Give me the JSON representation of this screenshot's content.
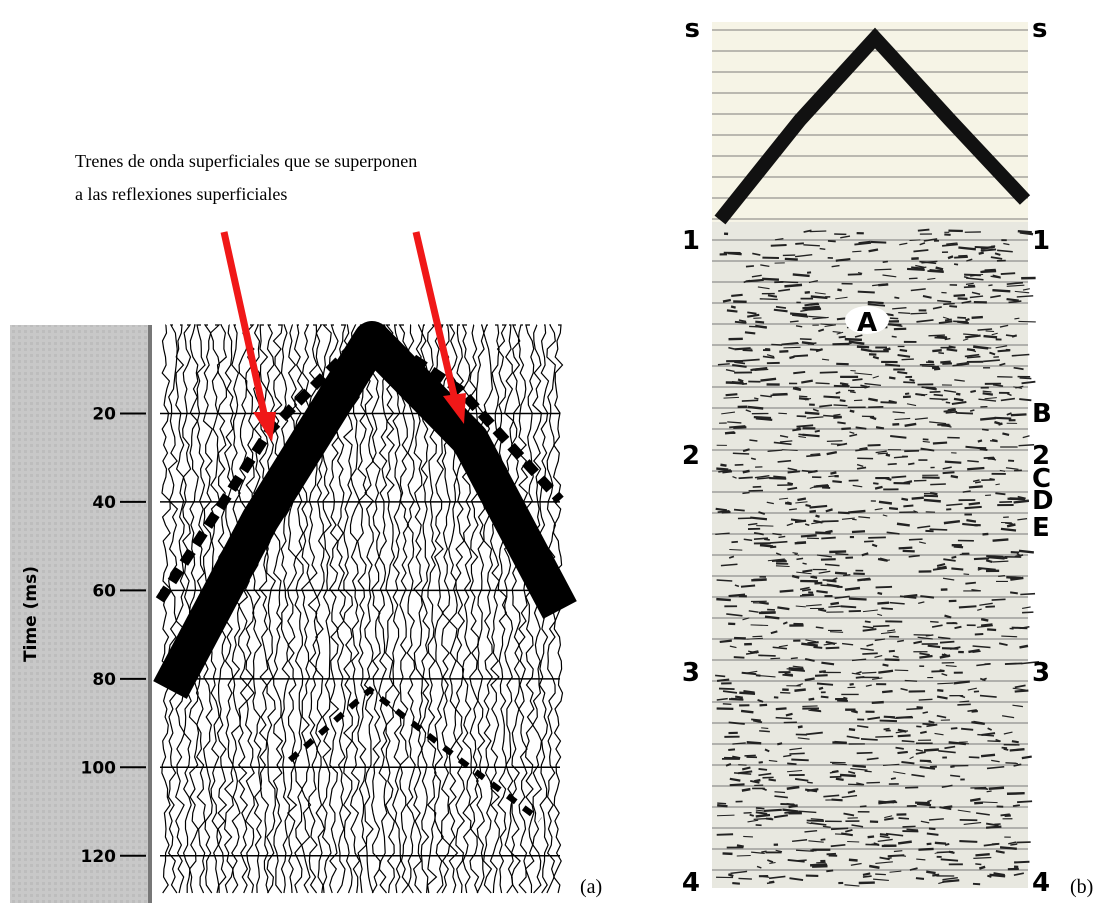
{
  "annotation": {
    "lines": [
      "Trenes de onda superficiales que se superponen",
      "a las reflexiones superficiales"
    ]
  },
  "panel_a": {
    "axis_label": "Time (ms)",
    "ylim": [
      0,
      130
    ],
    "ticks": [
      20,
      40,
      60,
      80,
      100,
      120
    ],
    "label": "(a)"
  },
  "panel_b": {
    "left_labels": [
      "s",
      "1",
      "2",
      "3",
      "4"
    ],
    "right_labels": [
      "s",
      "1",
      "B",
      "2",
      "C",
      "D",
      "E",
      "3",
      "4"
    ],
    "center_label": "A",
    "label": "(b)"
  }
}
